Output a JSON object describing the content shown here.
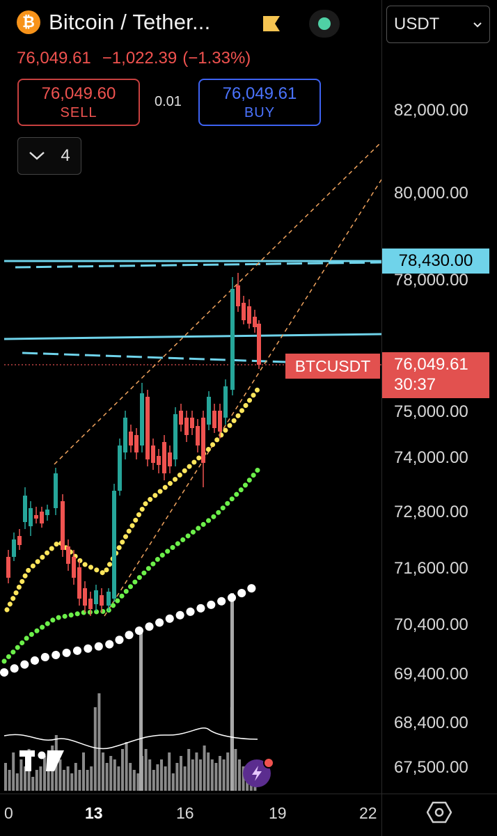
{
  "header": {
    "coin_icon": "bitcoin-icon",
    "coin_glyph": "₿",
    "symbol_name": "Bitcoin / Tether...",
    "flag_icon": "flag-icon",
    "status_icon": "market-status-icon",
    "last_price": "76,049.61",
    "change": "−1,022.39",
    "change_pct": "(−1.33%)"
  },
  "trade": {
    "sell_price": "76,049.60",
    "sell_label": "SELL",
    "buy_price": "76,049.61",
    "buy_label": "BUY",
    "spread": "0.01"
  },
  "indicators_toggle": {
    "icon": "chevron-down-icon",
    "count": "4"
  },
  "currency_select": {
    "value": "USDT",
    "icon": "chevron-down-icon"
  },
  "price_axis": {
    "ticks": [
      "82,000.00",
      "80,000.00",
      "78,000.00",
      "75,000.00",
      "74,000.00",
      "72,800.00",
      "71,600.00",
      "70,400.00",
      "69,400.00",
      "68,400.00",
      "67,500.00"
    ],
    "horizontal_line_label": "78,430.00",
    "current_price": "76,049.61",
    "countdown": "30:37",
    "symbol_tag": "BTCUSDT"
  },
  "time_axis": {
    "labels": [
      "0",
      "13",
      "16",
      "19",
      "22"
    ]
  },
  "colors": {
    "up": "#26a69a",
    "down": "#ef5350",
    "sell": "#ef5350",
    "buy": "#4b74ff",
    "horizontal_line": "#6fd3ea",
    "channel": "#f0a35e",
    "ma_fast": "#ffe65c",
    "ma_mid": "#6cf04a",
    "ma_slow": "#ffffff"
  },
  "chart_data": {
    "type": "candlestick",
    "y_axis_ticks": [
      82000,
      80000,
      78000,
      75000,
      74000,
      72800,
      71600,
      70400,
      69400,
      68400,
      67500
    ],
    "horizontal_lines": [
      78430
    ],
    "current_price": 76049.61,
    "x_axis_labels": [
      "0",
      "13",
      "16",
      "19",
      "22"
    ],
    "overlays": [
      "moving-average-yellow",
      "moving-average-green",
      "moving-average-white",
      "ascending-channel",
      "volume-bars"
    ]
  },
  "branding": {
    "logo": "tradingview-logo-icon",
    "alert_icon": "lightning-alert-icon",
    "settings_icon": "settings-hex-icon"
  }
}
